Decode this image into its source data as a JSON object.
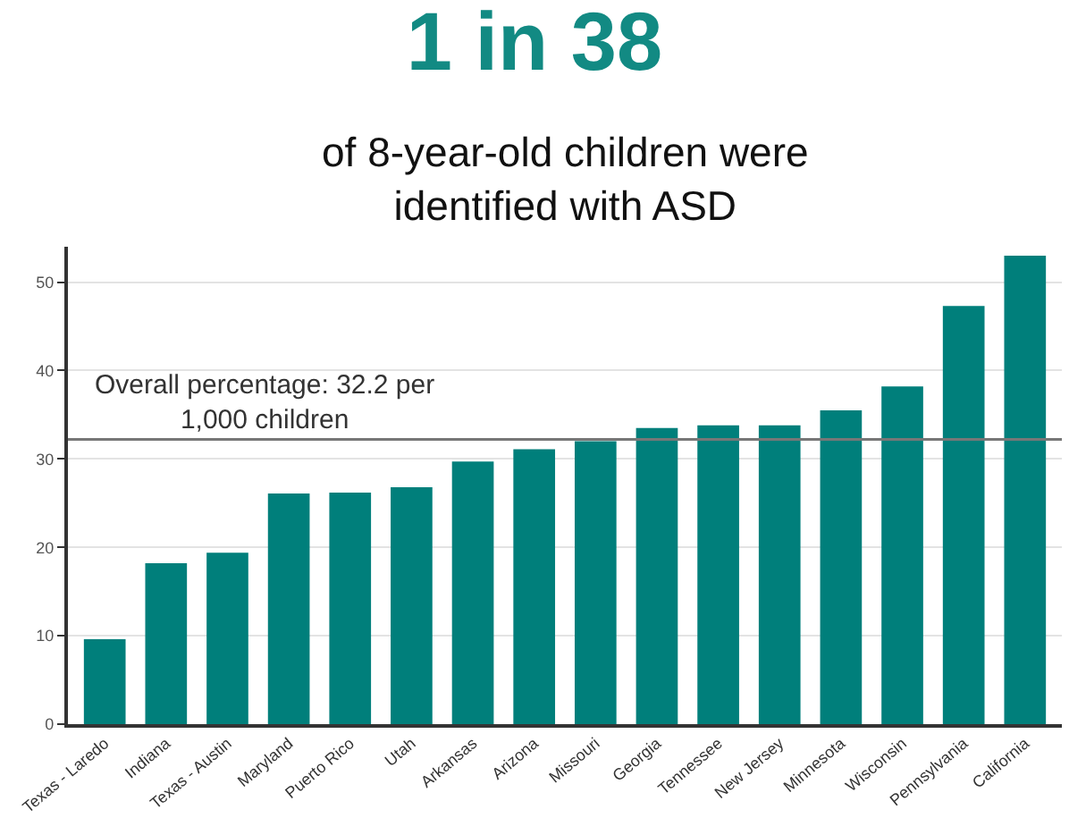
{
  "chart_data": {
    "type": "bar",
    "title": "1 in 38",
    "subtitle": "of 8-year-old children were\nidentified with ASD",
    "categories": [
      "Texas - Laredo",
      "Indiana",
      "Texas - Austin",
      "Maryland",
      "Puerto Rico",
      "Utah",
      "Arkansas",
      "Arizona",
      "Missouri",
      "Georgia",
      "Tennessee",
      "New Jersey",
      "Minnesota",
      "Wisconsin",
      "Pennsylvania",
      "California"
    ],
    "values": [
      9.6,
      18.2,
      19.4,
      26.1,
      26.2,
      26.8,
      29.7,
      31.1,
      32.0,
      33.5,
      33.8,
      33.8,
      35.5,
      38.2,
      47.3,
      53.0
    ],
    "color": "#007f7b",
    "ylim": [
      0,
      54
    ],
    "yticks": [
      0,
      10,
      20,
      30,
      40,
      50
    ],
    "grid": "y",
    "ref_lines": [
      {
        "axis": "y",
        "value": 32.2,
        "label": "Overall percentage: 32.2 per\n1,000 children",
        "color": "#777777"
      }
    ]
  }
}
